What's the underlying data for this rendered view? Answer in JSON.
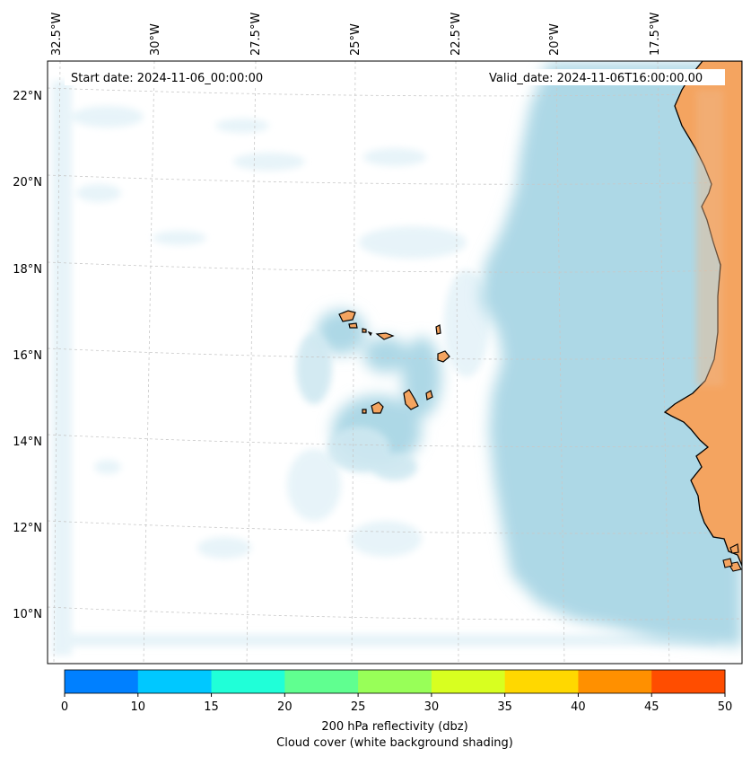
{
  "header": {
    "start_date": "Start date: 2024-11-06_00:00:00",
    "valid_date": "Valid_date: 2024-11-06T16:00:00.00"
  },
  "map": {
    "lon_labels": [
      "32.5°W",
      "30°W",
      "27.5°W",
      "25°W",
      "22.5°W",
      "20°W",
      "17.5°W"
    ],
    "lat_labels": [
      "22°N",
      "20°N",
      "18°N",
      "16°N",
      "14°N",
      "12°N",
      "10°N"
    ],
    "colors": {
      "land": "#f4a460",
      "cloud": "#add8e6",
      "coast": "#000000"
    },
    "gridlines": true
  },
  "colorbar": {
    "ticks": [
      "0",
      "10",
      "15",
      "20",
      "25",
      "30",
      "35",
      "40",
      "45",
      "50"
    ],
    "colors": [
      "#0080ff",
      "#00c8ff",
      "#20ffd8",
      "#60ff90",
      "#98ff58",
      "#d8ff20",
      "#ffd800",
      "#ff9000",
      "#ff4d00"
    ],
    "label": "200 hPa reflectivity (dbz)",
    "sublabel": "Cloud cover (white background shading)"
  }
}
